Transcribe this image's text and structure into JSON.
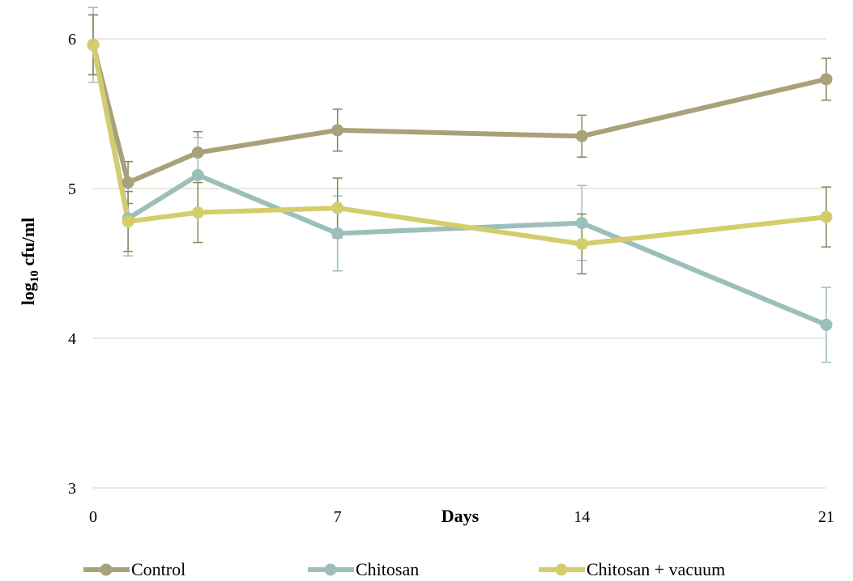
{
  "chart_data": {
    "type": "line",
    "title": "",
    "xlabel": "Days",
    "ylabel": "log10 cfu/ml",
    "ylabel_main": "log",
    "ylabel_sub": "10",
    "ylabel_rest": " cfu/ml",
    "xlim": [
      0,
      21
    ],
    "ylim": [
      3,
      6.2
    ],
    "x_ticks": [
      0,
      7,
      14,
      21
    ],
    "x_tick_labels": [
      "0",
      "7",
      "14",
      "21"
    ],
    "y_ticks": [
      3,
      4,
      5,
      6
    ],
    "y_tick_labels": [
      "3",
      "4",
      "5",
      "6"
    ],
    "grid": "horizontal",
    "legend_position": "bottom",
    "x": [
      0,
      1,
      3,
      7,
      14,
      21
    ],
    "series": [
      {
        "name": "Control",
        "color": "#a8a27a",
        "values": [
          5.96,
          5.04,
          5.24,
          5.39,
          5.35,
          5.73
        ],
        "errors": [
          0.2,
          0.14,
          0.14,
          0.14,
          0.14,
          0.14
        ]
      },
      {
        "name": "Chitosan",
        "color": "#9dbfbb",
        "values": [
          5.96,
          4.8,
          5.09,
          4.7,
          4.77,
          4.09
        ],
        "errors": [
          0.25,
          0.25,
          0.25,
          0.25,
          0.25,
          0.25
        ]
      },
      {
        "name": "Chitosan + vacuum",
        "color": "#d4cd6c",
        "values": [
          5.96,
          4.78,
          4.84,
          4.87,
          4.63,
          4.81
        ],
        "errors": [
          0.2,
          0.2,
          0.2,
          0.2,
          0.2,
          0.2
        ]
      }
    ]
  }
}
